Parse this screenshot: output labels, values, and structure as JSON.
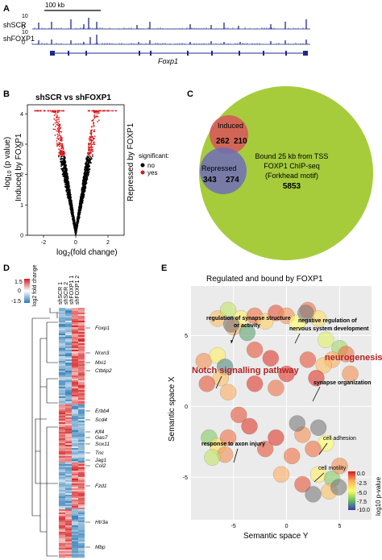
{
  "panels": {
    "a": {
      "label": "A",
      "scale_label": "100 kb",
      "tracks": [
        {
          "name": "shSCR",
          "max": "10",
          "min": "0"
        },
        {
          "name": "shFOXP1",
          "max": "10",
          "min": "0"
        }
      ],
      "gene": "Foxp1"
    },
    "b": {
      "label": "B",
      "title": "shSCR vs shFOXP1",
      "ylabel": "-log10 (p value)",
      "ylabel_main": "-log",
      "ylabel_sub": "10",
      "ylabel_rest": " (p value)",
      "xlabel_main": "log",
      "xlabel_sub": "2",
      "xlabel_rest": "(fold change)",
      "left_annot": "Induced by FOXP1",
      "right_annot": "Repressed by FOXP1",
      "legend_title": "significant:",
      "legend": [
        {
          "label": "no",
          "color": "#000000"
        },
        {
          "label": "yes",
          "color": "#d7191c"
        }
      ]
    },
    "c": {
      "label": "C",
      "induced_label": "Induced",
      "induced_only": "262",
      "induced_overlap": "210",
      "repressed_label": "Repressed",
      "repressed_only": "343",
      "repressed_overlap": "274",
      "big_line1": "Bound 25 kb from TSS",
      "big_line2": "FOXP1 ChIP-seq",
      "big_line3": "(Forkhead motif)",
      "big_count": "5853",
      "colors": {
        "big": "#a6cc3c",
        "induced": "#d9535a",
        "repressed": "#6f6cb8"
      }
    },
    "d": {
      "label": "D",
      "scale_max": "1.5",
      "scale_mid": "0",
      "scale_min": "-1.5",
      "scale_title": "log2 fold change",
      "columns": [
        "shSCR 1",
        "shSCR 2",
        "shFOXP1 1",
        "shFOXP1 2"
      ],
      "genes": [
        "Foxp1",
        "Nrxn3",
        "Mxi1",
        "Ctbtip2",
        "Erbb4",
        "Scd4",
        "Klf4",
        "Gas7",
        "Sox11",
        "Tnc",
        "Jag1",
        "Col2",
        "Fzd1",
        "Htr3a",
        "Mbp"
      ]
    },
    "e": {
      "label": "E",
      "title": "Regulated and bound by FOXP1",
      "xlabel": "Semantic space Y",
      "ylabel": "Semantic space X",
      "x_ticks": [
        "-5",
        "0",
        "5"
      ],
      "y_ticks": [
        "5",
        "0",
        "-5"
      ],
      "annotations": [
        {
          "text": "regulation of synapse structure",
          "style": "bold"
        },
        {
          "text": "or activity",
          "style": "bold"
        },
        {
          "text": "negative regulation of",
          "style": "bold"
        },
        {
          "text": "nervous system development",
          "style": "bold"
        },
        {
          "text": "neurogenesis",
          "style": "red"
        },
        {
          "text": "synapse organization",
          "style": "bold"
        },
        {
          "text": "Notch signalling pathway",
          "style": "red"
        },
        {
          "text": "response to axon injury",
          "style": "bold"
        },
        {
          "text": "cell adhesion",
          "style": "normal"
        },
        {
          "text": "cell motility",
          "style": "normal"
        }
      ],
      "legend_title": "log10 p-value",
      "legend_ticks": [
        "0.0",
        "-2.5",
        "-5.0",
        "-7.5",
        "-10.0"
      ]
    }
  },
  "chart_data": [
    {
      "type": "scatter",
      "panel": "B",
      "title": "shSCR vs shFOXP1",
      "xlim": [
        -3,
        3
      ],
      "ylim": [
        0,
        4.3
      ],
      "x_ticks": [
        -2,
        0,
        2
      ],
      "y_ticks": [
        0,
        1,
        2,
        3,
        4
      ],
      "legend": [
        "no",
        "yes"
      ],
      "legend_placement": "right"
    },
    {
      "type": "scatter",
      "panel": "E",
      "title": "Regulated and bound by FOXP1",
      "xlim": [
        -9,
        8
      ],
      "ylim": [
        -8,
        8.5
      ],
      "x_ticks": [
        -5,
        0,
        5
      ],
      "y_ticks": [
        5,
        0,
        -5
      ],
      "color_scale": "log10 p-value",
      "color_range": [
        -10,
        0
      ],
      "points": [
        {
          "x": -6.5,
          "y": 6.2,
          "v": -3.0
        },
        {
          "x": -5.5,
          "y": 6.8,
          "v": -6.0
        },
        {
          "x": -5.0,
          "y": 5.6,
          "v": -2.5
        },
        {
          "x": -4.3,
          "y": 6.2,
          "v": -4.5
        },
        {
          "x": -3.7,
          "y": 5.2,
          "v": -8.0
        },
        {
          "x": -3.0,
          "y": 6.4,
          "v": -1.5
        },
        {
          "x": -2.0,
          "y": 6.0,
          "v": -3.5
        },
        {
          "x": -1.0,
          "y": 6.6,
          "v": -1.0
        },
        {
          "x": 0.0,
          "y": 6.4,
          "v": -2.0
        },
        {
          "x": 1.0,
          "y": 5.9,
          "v": -5.0
        },
        {
          "x": 2.0,
          "y": 6.8,
          "v": -1.5
        },
        {
          "x": 3.0,
          "y": 6.2,
          "v": -4.0
        },
        {
          "x": -5.2,
          "y": 5.8,
          "v": -10.0
        },
        {
          "x": 1.8,
          "y": 6.6,
          "v": -10.0
        },
        {
          "x": 3.7,
          "y": 4.7,
          "v": -5.5
        },
        {
          "x": 5.0,
          "y": 4.1,
          "v": -6.5
        },
        {
          "x": 4.3,
          "y": 3.3,
          "v": -2.5
        },
        {
          "x": 5.6,
          "y": 3.7,
          "v": -1.5
        },
        {
          "x": 3.5,
          "y": 2.9,
          "v": -3.0
        },
        {
          "x": 6.0,
          "y": 2.3,
          "v": -2.0
        },
        {
          "x": 2.0,
          "y": 3.3,
          "v": -1.0
        },
        {
          "x": 2.8,
          "y": 2.0,
          "v": -0.5
        },
        {
          "x": -7.8,
          "y": 3.2,
          "v": -2.0
        },
        {
          "x": -6.5,
          "y": 3.6,
          "v": -4.5
        },
        {
          "x": -5.8,
          "y": 2.8,
          "v": -8.5
        },
        {
          "x": -6.2,
          "y": 2.0,
          "v": -3.0
        },
        {
          "x": -7.5,
          "y": 1.6,
          "v": -1.0
        },
        {
          "x": -5.5,
          "y": 1.0,
          "v": -2.5
        },
        {
          "x": -3.0,
          "y": 1.6,
          "v": -0.5
        },
        {
          "x": -1.0,
          "y": 1.3,
          "v": -1.5
        },
        {
          "x": 0.0,
          "y": 2.3,
          "v": -0.5
        },
        {
          "x": -3.0,
          "y": 4.0,
          "v": -1.0
        },
        {
          "x": -1.5,
          "y": 3.4,
          "v": -0.5
        },
        {
          "x": -7.3,
          "y": -2.2,
          "v": -7.0
        },
        {
          "x": -6.5,
          "y": -2.8,
          "v": -4.0
        },
        {
          "x": -5.8,
          "y": -3.4,
          "v": -2.0
        },
        {
          "x": -7.0,
          "y": -3.6,
          "v": -6.0
        },
        {
          "x": -5.5,
          "y": -2.2,
          "v": -1.5
        },
        {
          "x": -2.0,
          "y": -3.0,
          "v": -1.0
        },
        {
          "x": -1.0,
          "y": -2.2,
          "v": -0.5
        },
        {
          "x": 0.5,
          "y": -3.5,
          "v": -1.5
        },
        {
          "x": 1.5,
          "y": -2.0,
          "v": -2.0
        },
        {
          "x": 3.0,
          "y": -1.5,
          "v": -10.0
        },
        {
          "x": 3.7,
          "y": -2.6,
          "v": -5.0
        },
        {
          "x": 2.5,
          "y": -3.0,
          "v": -1.5
        },
        {
          "x": 1.0,
          "y": -1.2,
          "v": -10.0
        },
        {
          "x": -0.5,
          "y": -4.8,
          "v": -2.5
        },
        {
          "x": 1.5,
          "y": -5.5,
          "v": -1.0
        },
        {
          "x": 3.0,
          "y": -4.8,
          "v": -4.5
        },
        {
          "x": 4.3,
          "y": -5.1,
          "v": -7.0
        },
        {
          "x": 4.0,
          "y": -6.0,
          "v": -3.0
        },
        {
          "x": 2.5,
          "y": -6.2,
          "v": -10.0
        },
        {
          "x": 5.0,
          "y": -4.2,
          "v": -2.0
        },
        {
          "x": 4.9,
          "y": -5.7,
          "v": -10.0
        },
        {
          "x": -3.5,
          "y": -1.4,
          "v": -0.5
        },
        {
          "x": -4.5,
          "y": -0.6,
          "v": -1.0
        }
      ]
    }
  ]
}
